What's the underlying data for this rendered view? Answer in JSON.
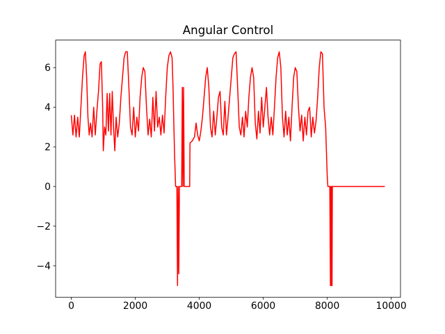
{
  "chart_data": {
    "type": "line",
    "title": "Angular Control",
    "x": [
      0,
      50,
      100,
      150,
      200,
      250,
      300,
      350,
      400,
      440,
      480,
      520,
      560,
      600,
      650,
      700,
      750,
      800,
      850,
      900,
      940,
      980,
      1000,
      1040,
      1080,
      1120,
      1160,
      1200,
      1240,
      1280,
      1320,
      1360,
      1400,
      1450,
      1500,
      1550,
      1600,
      1650,
      1700,
      1750,
      1800,
      1850,
      1900,
      1950,
      2000,
      2050,
      2100,
      2150,
      2200,
      2250,
      2300,
      2350,
      2400,
      2450,
      2500,
      2550,
      2600,
      2650,
      2700,
      2750,
      2800,
      2850,
      2900,
      2950,
      3000,
      3050,
      3100,
      3150,
      3180,
      3200,
      3230,
      3260,
      3300,
      3320,
      3340,
      3360,
      3380,
      3420,
      3450,
      3470,
      3490,
      3510,
      3530,
      3560,
      3650,
      3700,
      3710,
      3780,
      3850,
      3900,
      3950,
      4000,
      4050,
      4100,
      4150,
      4200,
      4250,
      4300,
      4350,
      4400,
      4450,
      4500,
      4550,
      4600,
      4650,
      4700,
      4750,
      4800,
      4850,
      4900,
      4950,
      5000,
      5050,
      5100,
      5150,
      5200,
      5250,
      5300,
      5350,
      5400,
      5450,
      5500,
      5550,
      5600,
      5650,
      5700,
      5750,
      5800,
      5850,
      5900,
      5950,
      6000,
      6050,
      6100,
      6150,
      6200,
      6250,
      6300,
      6350,
      6400,
      6450,
      6500,
      6550,
      6600,
      6650,
      6700,
      6750,
      6800,
      6850,
      6900,
      6950,
      7000,
      7050,
      7100,
      7150,
      7200,
      7250,
      7300,
      7350,
      7400,
      7450,
      7500,
      7550,
      7600,
      7650,
      7700,
      7750,
      7800,
      7850,
      7900,
      7950,
      7980,
      8000,
      8020,
      8080,
      8100,
      8110,
      8130,
      8140,
      8150,
      8160,
      8200,
      9800
    ],
    "series": [
      {
        "color": "#ff0000",
        "values": [
          3.6,
          2.6,
          3.6,
          2.5,
          3.5,
          2.5,
          4.0,
          5.5,
          6.6,
          6.8,
          5.5,
          3.5,
          2.6,
          3.2,
          2.5,
          4.0,
          2.6,
          3.8,
          4.8,
          6.2,
          6.3,
          4.0,
          1.8,
          3.0,
          2.6,
          4.7,
          2.8,
          4.7,
          2.6,
          4.8,
          3.0,
          1.8,
          3.5,
          2.5,
          3.2,
          4.5,
          5.5,
          6.5,
          6.8,
          6.8,
          5.0,
          3.0,
          2.6,
          4.0,
          2.5,
          3.5,
          2.8,
          4.5,
          5.5,
          6.0,
          5.8,
          4.0,
          2.6,
          3.4,
          2.5,
          4.5,
          2.8,
          4.8,
          3.0,
          3.5,
          2.6,
          3.6,
          2.7,
          4.5,
          6.0,
          6.6,
          6.8,
          6.5,
          5.0,
          3.5,
          1.5,
          0,
          0,
          -5,
          0,
          -4.4,
          0,
          0,
          0,
          5,
          0,
          5,
          0,
          0,
          0,
          0,
          2.2,
          2.3,
          2.5,
          3.2,
          2.6,
          2.3,
          2.8,
          3.5,
          4.5,
          5.5,
          6.0,
          5.0,
          3.0,
          2.5,
          3.8,
          2.6,
          3.5,
          4.5,
          4.8,
          3.0,
          2.6,
          4.3,
          2.6,
          3.5,
          4.5,
          5.5,
          6.5,
          6.7,
          6.8,
          5.0,
          3.0,
          2.6,
          3.5,
          2.5,
          3.8,
          3.0,
          4.5,
          5.5,
          6.0,
          5.5,
          3.2,
          2.4,
          3.8,
          2.7,
          4.5,
          3.0,
          4.0,
          5.0,
          3.5,
          2.6,
          3.5,
          2.6,
          4.0,
          5.5,
          6.5,
          6.8,
          6.0,
          3.5,
          2.5,
          3.8,
          2.6,
          3.5,
          2.3,
          4.0,
          5.5,
          6.0,
          5.8,
          4.0,
          2.8,
          3.6,
          2.3,
          3.5,
          2.6,
          3.8,
          4.0,
          2.5,
          3.5,
          2.7,
          3.3,
          4.5,
          6.0,
          6.8,
          6.7,
          4.0,
          3.0,
          1.5,
          0.5,
          0,
          0,
          -5,
          0,
          -5,
          0,
          -5,
          0,
          0,
          0
        ]
      }
    ],
    "xlim": [
      -490,
      10290
    ],
    "xticks": [
      0,
      2000,
      4000,
      6000,
      8000,
      10000
    ],
    "ylim": [
      -5.59,
      7.39
    ],
    "yticks": [
      {
        "value": -4,
        "label": "−4"
      },
      {
        "value": -2,
        "label": "−2"
      },
      0,
      2,
      4,
      6
    ]
  }
}
